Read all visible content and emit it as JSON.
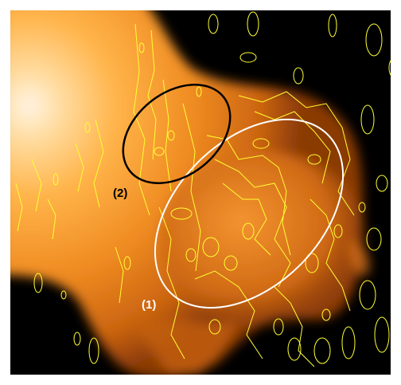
{
  "image": {
    "background_color": "#000000",
    "emission_colors": [
      "#fff0dc",
      "#ffd68a",
      "#ffae3a",
      "#f08a1e",
      "#c05a0c",
      "#6a2a04"
    ],
    "contour_color": "#ffff33",
    "frame_color": "#ffffff"
  },
  "regions": [
    {
      "label": "(1)",
      "color": "#ffffff"
    },
    {
      "label": "(2)",
      "color": "#000000"
    }
  ]
}
